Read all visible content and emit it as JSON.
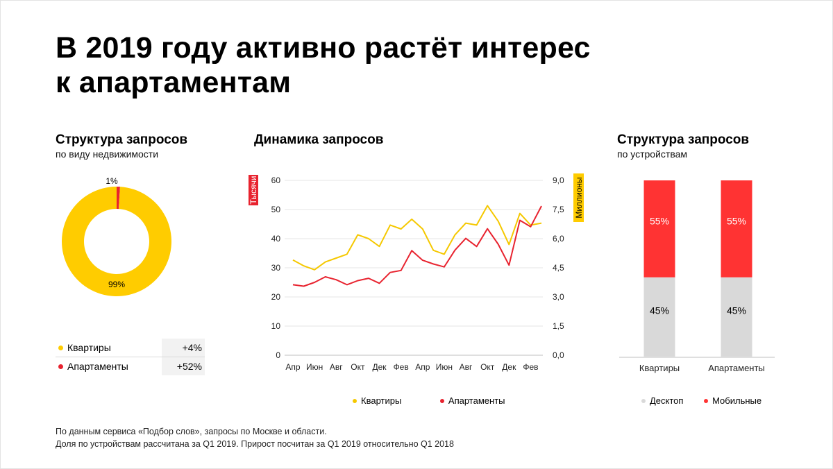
{
  "title": {
    "line1": "В 2019 году активно растёт интерес",
    "line2": "к апартаментам"
  },
  "colors": {
    "yellow": "#FFCC00",
    "red": "#E8232F",
    "bar_red": "#FF3333",
    "gray": "#D9D9D9",
    "line_yellow": "#F5C800"
  },
  "left": {
    "title": "Структура запросов",
    "subtitle": "по виду недвижимости",
    "growth": [
      {
        "label": "Квартиры",
        "value": "+4%",
        "color": "#FFCC00"
      },
      {
        "label": "Апартаменты",
        "value": "+52%",
        "color": "#E8232F"
      }
    ]
  },
  "middle": {
    "title": "Динамика запросов"
  },
  "right": {
    "title": "Структура запросов",
    "subtitle": "по устройствам"
  },
  "footnote": {
    "line1": "По данным сервиса «Подбор слов», запросы по Москве и области.",
    "line2": "Доля по устройствам рассчитана за Q1 2019. Прирост посчитан за Q1 2019 относительно Q1 2018"
  },
  "chart_data": [
    {
      "type": "pie",
      "variant": "donut",
      "title": "Структура запросов",
      "categories": [
        "Квартиры",
        "Апартаменты"
      ],
      "values": [
        99,
        1
      ],
      "labels": [
        "99%",
        "1%"
      ],
      "colors": [
        "#FFCC00",
        "#E8232F"
      ]
    },
    {
      "type": "line",
      "title": "Динамика запросов",
      "ylabel": "Тысячи",
      "y2label": "Миллионы",
      "ylim": [
        0,
        60
      ],
      "y2lim": [
        0,
        9
      ],
      "yticks": [
        "0",
        "10",
        "20",
        "30",
        "40",
        "50",
        "60"
      ],
      "y2ticks": [
        "0,0",
        "1,5",
        "3,0",
        "4,5",
        "6,0",
        "7,5",
        "9,0"
      ],
      "xticks": [
        "Апр",
        "Июн",
        "Авг",
        "Окт",
        "Дек",
        "Фев",
        "Апр",
        "Июн",
        "Авг",
        "Окт",
        "Дек",
        "Фев"
      ],
      "x_points": 24,
      "legend_position": "bottom",
      "series": [
        {
          "name": "Квартиры",
          "axis": "y2",
          "color": "#F5C800",
          "values": [
            4.9,
            4.6,
            4.4,
            4.8,
            5.0,
            5.2,
            6.2,
            6.0,
            5.6,
            6.7,
            6.5,
            7.0,
            6.5,
            5.4,
            5.2,
            6.2,
            6.8,
            6.7,
            7.7,
            6.9,
            5.7,
            7.3,
            6.7,
            6.8
          ],
          "values_left_axis": [
            32.4,
            30.8,
            29.5,
            32.1,
            33.3,
            34.7,
            41.3,
            39.8,
            37.3,
            44.5,
            43.1,
            46.5,
            43.0,
            35.7,
            34.6,
            41.3,
            45.3,
            44.5,
            51.5,
            45.8,
            38.1,
            48.5,
            45.0,
            45.6
          ]
        },
        {
          "name": "Апартаменты",
          "axis": "y",
          "color": "#E8232F",
          "values": [
            24.2,
            23.7,
            25.0,
            26.9,
            25.9,
            24.2,
            25.6,
            26.4,
            24.7,
            28.4,
            29.1,
            35.9,
            32.6,
            31.3,
            30.3,
            36.1,
            40.1,
            37.3,
            43.4,
            38.1,
            30.9,
            46.3,
            44.1,
            51.2
          ]
        }
      ]
    },
    {
      "type": "bar",
      "variant": "stacked-100",
      "title": "Структура запросов",
      "categories": [
        "Квартиры",
        "Апартаменты"
      ],
      "series": [
        {
          "name": "Десктоп",
          "color": "#D9D9D9",
          "values": [
            45,
            45
          ],
          "labels": [
            "45%",
            "45%"
          ]
        },
        {
          "name": "Мобильные",
          "color": "#FF3333",
          "values": [
            55,
            55
          ],
          "labels": [
            "55%",
            "55%"
          ]
        }
      ],
      "legend_position": "bottom"
    }
  ]
}
